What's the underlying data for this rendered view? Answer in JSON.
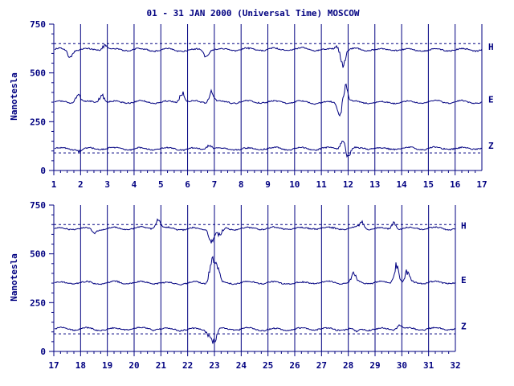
{
  "title": "01 - 31 JAN 2000 (Universal Time) MOSCOW",
  "ylabel": "Nanotesla",
  "colors": {
    "ink": "#000080",
    "background": "#ffffff"
  },
  "chart_data": [
    {
      "type": "line",
      "ylim": [
        0,
        750
      ],
      "yticks": [
        "0",
        "250",
        "500",
        "750"
      ],
      "xlim": [
        1,
        17
      ],
      "xticks": [
        "1",
        "2",
        "3",
        "4",
        "5",
        "6",
        "7",
        "8",
        "9",
        "10",
        "11",
        "12",
        "13",
        "14",
        "15",
        "16",
        "17"
      ],
      "grid": true,
      "reference_lines": [
        650,
        90
      ],
      "series": [
        {
          "name": "H",
          "baseline": 620,
          "events": [
            [
              1.6,
              -40
            ],
            [
              2.9,
              25
            ],
            [
              6.7,
              -30
            ],
            [
              11.8,
              -70
            ],
            [
              11.6,
              20
            ]
          ]
        },
        {
          "name": "E",
          "baseline": 350,
          "events": [
            [
              1.9,
              45
            ],
            [
              2.8,
              40
            ],
            [
              5.8,
              50
            ],
            [
              6.9,
              60
            ],
            [
              11.9,
              90
            ],
            [
              11.7,
              -60
            ]
          ]
        },
        {
          "name": "Z",
          "baseline": 112,
          "events": [
            [
              6.8,
              25
            ],
            [
              11.8,
              40
            ],
            [
              12.0,
              -45
            ],
            [
              2.0,
              -15
            ]
          ]
        }
      ]
    },
    {
      "type": "line",
      "ylim": [
        0,
        750
      ],
      "yticks": [
        "0",
        "250",
        "500",
        "750"
      ],
      "xlim": [
        17,
        32
      ],
      "xticks": [
        "17",
        "18",
        "19",
        "20",
        "21",
        "22",
        "23",
        "24",
        "25",
        "26",
        "27",
        "28",
        "29",
        "30",
        "31",
        "32"
      ],
      "grid": true,
      "reference_lines": [
        650,
        90
      ],
      "series": [
        {
          "name": "H",
          "baseline": 630,
          "events": [
            [
              20.9,
              50
            ],
            [
              22.9,
              -70
            ],
            [
              23.2,
              -40
            ],
            [
              28.5,
              30
            ],
            [
              29.7,
              40
            ],
            [
              18.5,
              -20
            ]
          ]
        },
        {
          "name": "E",
          "baseline": 352,
          "events": [
            [
              22.9,
              120
            ],
            [
              23.1,
              80
            ],
            [
              28.2,
              40
            ],
            [
              29.8,
              90
            ],
            [
              30.2,
              50
            ]
          ]
        },
        {
          "name": "Z",
          "baseline": 115,
          "events": [
            [
              23.0,
              -70
            ],
            [
              22.8,
              -25
            ],
            [
              28.3,
              -15
            ],
            [
              29.9,
              20
            ]
          ]
        }
      ]
    }
  ]
}
